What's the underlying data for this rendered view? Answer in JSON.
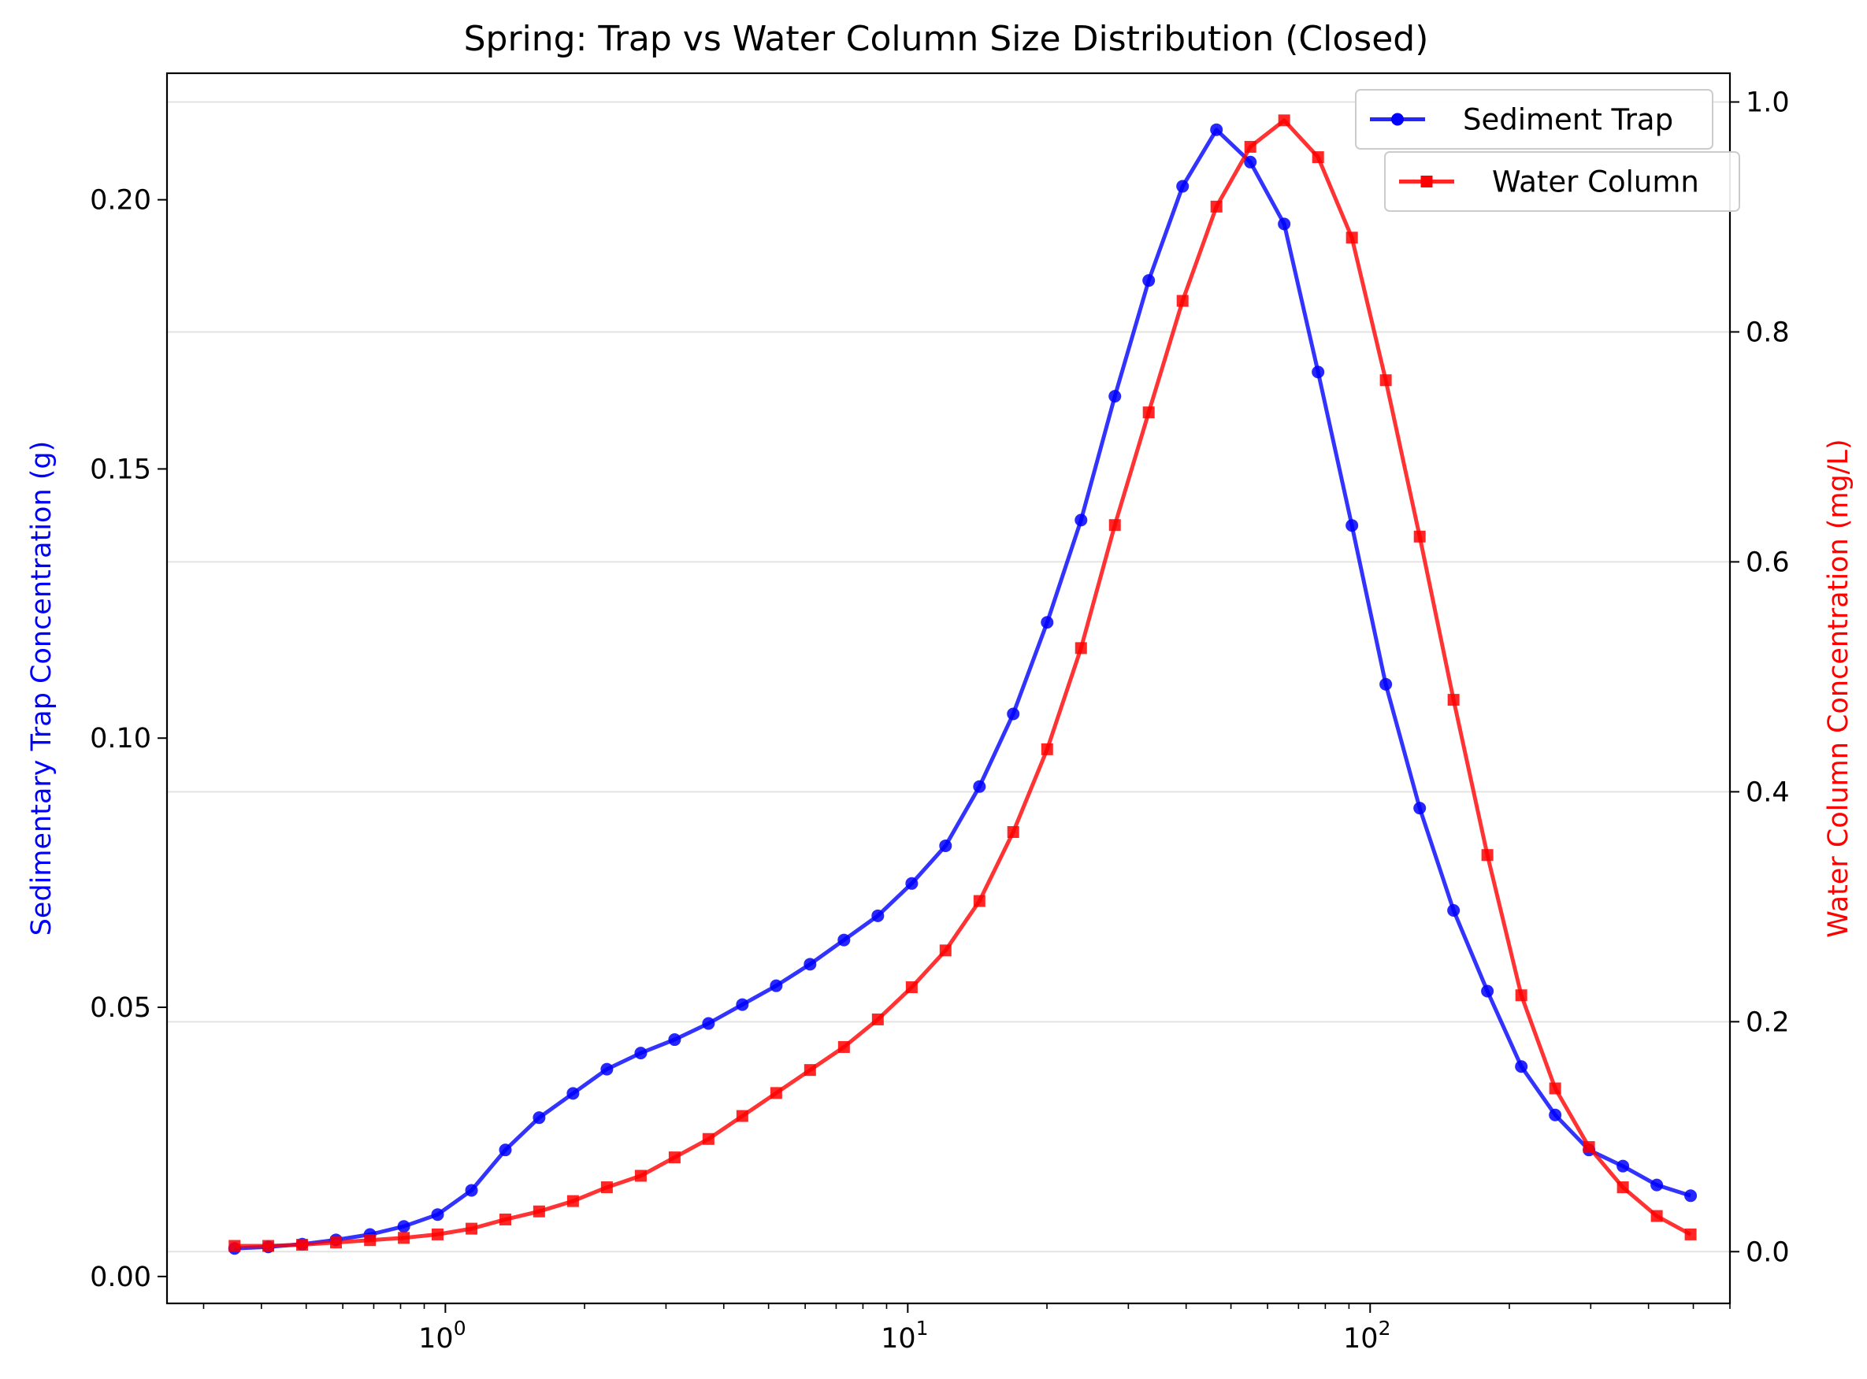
{
  "chart_data": {
    "type": "line",
    "title": "Spring: Trap vs Water Column Size Distribution (Closed)",
    "xlabel": "",
    "x_scale": "log",
    "xlim": [
      0.25,
      600
    ],
    "x_ticks": [
      1,
      10,
      100
    ],
    "x_tick_labels": [
      {
        "base": "10",
        "exp": "0"
      },
      {
        "base": "10",
        "exp": "1"
      },
      {
        "base": "10",
        "exp": "2"
      }
    ],
    "grid": "horizontal, secondary axis",
    "legend_placement": "top-right",
    "left_axis": {
      "label": "Sedimentary Trap Concentration (g)",
      "color": "#0000ff",
      "ylim": [
        -0.005,
        0.2235
      ],
      "ticks": [
        "0.00",
        "0.05",
        "0.10",
        "0.15",
        "0.20"
      ]
    },
    "right_axis": {
      "label": "Water Column Concentration (mg/L)",
      "color": "#ff0000",
      "ylim": [
        -0.045,
        1.025
      ],
      "ticks": [
        "0.0",
        "0.2",
        "0.4",
        "0.6",
        "0.8",
        "1.0"
      ]
    },
    "x": [
      0.35,
      0.414,
      0.49,
      0.58,
      0.687,
      0.813,
      0.962,
      1.139,
      1.348,
      1.595,
      1.888,
      2.235,
      2.646,
      3.132,
      3.707,
      4.388,
      5.194,
      6.148,
      7.278,
      8.615,
      10.2,
      12.07,
      14.29,
      16.91,
      20.02,
      23.7,
      28.05,
      33.2,
      39.3,
      46.52,
      55.07,
      65.18,
      77.16,
      91.33,
      108.1,
      128.0,
      151.5,
      179.3,
      212.3,
      251.3,
      297.4,
      352.1,
      416.8,
      493.3
    ],
    "series": [
      {
        "name": "Sediment Trap",
        "axis": "left",
        "color": "#0000ff",
        "marker": "circle",
        "values": [
          0.0052,
          0.0055,
          0.006,
          0.0068,
          0.0078,
          0.0093,
          0.0115,
          0.016,
          0.0235,
          0.0295,
          0.034,
          0.0385,
          0.0415,
          0.044,
          0.047,
          0.0505,
          0.054,
          0.058,
          0.0625,
          0.067,
          0.073,
          0.08,
          0.091,
          0.1045,
          0.1215,
          0.1405,
          0.1635,
          0.185,
          0.2025,
          0.213,
          0.207,
          0.1955,
          0.168,
          0.1395,
          0.11,
          0.087,
          0.068,
          0.053,
          0.039,
          0.03,
          0.0235,
          0.0205,
          0.017,
          0.015
        ]
      },
      {
        "name": "Water Column",
        "axis": "right",
        "color": "#ff0000",
        "marker": "square",
        "values": [
          0.005,
          0.005,
          0.006,
          0.008,
          0.01,
          0.012,
          0.015,
          0.02,
          0.028,
          0.035,
          0.044,
          0.056,
          0.066,
          0.082,
          0.098,
          0.118,
          0.138,
          0.158,
          0.178,
          0.202,
          0.23,
          0.262,
          0.305,
          0.365,
          0.437,
          0.525,
          0.632,
          0.73,
          0.827,
          0.909,
          0.961,
          0.984,
          0.952,
          0.882,
          0.758,
          0.622,
          0.48,
          0.345,
          0.223,
          0.142,
          0.091,
          0.056,
          0.031,
          0.015
        ]
      }
    ]
  }
}
